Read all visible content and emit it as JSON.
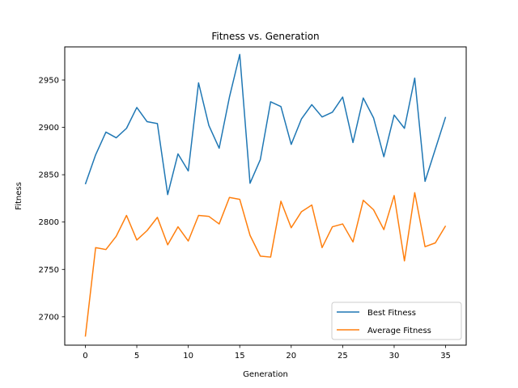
{
  "chart_data": {
    "type": "line",
    "title": "Fitness vs. Generation",
    "xlabel": "Generation",
    "ylabel": "Fitness",
    "xlim": [
      -2,
      37
    ],
    "ylim": [
      2670,
      2985
    ],
    "xticks": [
      0,
      5,
      10,
      15,
      20,
      25,
      30,
      35
    ],
    "yticks": [
      2700,
      2750,
      2800,
      2850,
      2900,
      2950
    ],
    "legend_position": "lower-right",
    "grid": false,
    "x": [
      0,
      1,
      2,
      3,
      4,
      5,
      6,
      7,
      8,
      9,
      10,
      11,
      12,
      13,
      14,
      15,
      16,
      17,
      18,
      19,
      20,
      21,
      22,
      23,
      24,
      25,
      26,
      27,
      28,
      29,
      30,
      31,
      32,
      33,
      34,
      35
    ],
    "series": [
      {
        "name": "Best Fitness",
        "color": "#1f77b4",
        "values": [
          2840,
          2871,
          2895,
          2889,
          2899,
          2921,
          2906,
          2904,
          2829,
          2872,
          2854,
          2947,
          2902,
          2878,
          2932,
          2977,
          2841,
          2866,
          2927,
          2922,
          2882,
          2909,
          2924,
          2911,
          2916,
          2932,
          2884,
          2931,
          2910,
          2869,
          2913,
          2899,
          2952,
          2843,
          2877,
          2911
        ]
      },
      {
        "name": "Average Fitness",
        "color": "#ff7f0e",
        "values": [
          2679,
          2773,
          2771,
          2785,
          2807,
          2781,
          2791,
          2805,
          2776,
          2795,
          2780,
          2807,
          2806,
          2798,
          2826,
          2824,
          2786,
          2764,
          2763,
          2822,
          2794,
          2811,
          2818,
          2773,
          2795,
          2798,
          2779,
          2823,
          2813,
          2792,
          2828,
          2759,
          2831,
          2774,
          2778,
          2796
        ]
      }
    ]
  }
}
